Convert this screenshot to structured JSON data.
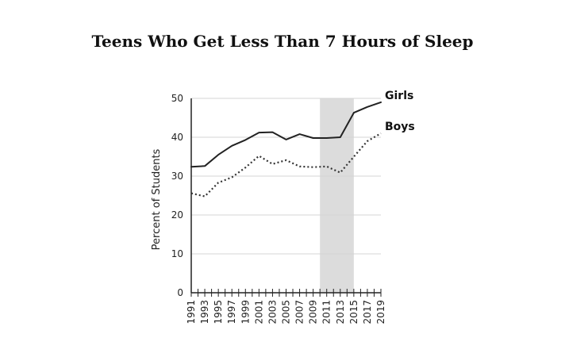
{
  "chart_data": {
    "type": "line",
    "title": "Teens Who Get Less Than 7 Hours of Sleep",
    "ylabel": "Percent of Students",
    "xlabel": "",
    "ylim": [
      0,
      50
    ],
    "yticks": [
      0,
      10,
      20,
      30,
      40,
      50
    ],
    "x_ticks": [
      "1991",
      "1993",
      "1995",
      "1997",
      "1999",
      "2001",
      "2003",
      "2005",
      "2007",
      "2009",
      "2011",
      "2013",
      "2015",
      "2017",
      "2019"
    ],
    "grid": true,
    "shaded_region": {
      "from": 2010,
      "to": 2015,
      "color": "#dcdcdc"
    },
    "series": [
      {
        "name": "Girls",
        "style": "solid",
        "color": "#222222",
        "x": [
          1991,
          1993,
          1995,
          1997,
          1999,
          2001,
          2003,
          2005,
          2007,
          2009,
          2011,
          2013,
          2015,
          2017,
          2019
        ],
        "values": [
          32.4,
          32.6,
          35.5,
          37.8,
          39.3,
          41.2,
          41.3,
          39.4,
          40.8,
          39.8,
          39.8,
          40.0,
          46.3,
          47.8,
          49.0
        ]
      },
      {
        "name": "Boys",
        "style": "dotted",
        "color": "#333333",
        "x": [
          1991,
          1993,
          1995,
          1997,
          1999,
          2001,
          2003,
          2005,
          2007,
          2009,
          2011,
          2013,
          2015,
          2017,
          2019
        ],
        "values": [
          25.6,
          24.8,
          28.3,
          29.7,
          32.2,
          35.2,
          33.1,
          34.1,
          32.5,
          32.3,
          32.5,
          30.9,
          35.0,
          39.0,
          41.0
        ]
      }
    ]
  }
}
